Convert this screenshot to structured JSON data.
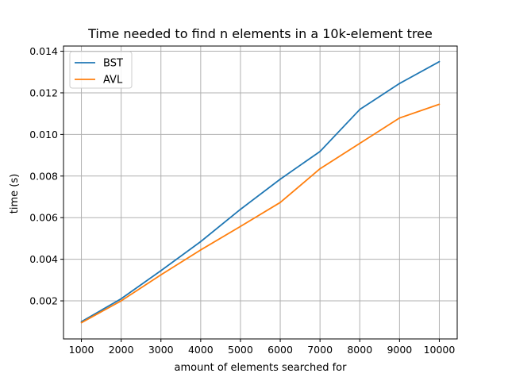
{
  "chart_data": {
    "type": "line",
    "title": "Time needed to find n elements in a 10k-element tree",
    "xlabel": "amount of elements searched for",
    "ylabel": "time (s)",
    "x": [
      1000,
      2000,
      3000,
      4000,
      5000,
      6000,
      7000,
      8000,
      9000,
      10000
    ],
    "xlim": [
      550,
      10450
    ],
    "ylim": [
      0.00017,
      0.01425
    ],
    "xticks": [
      1000,
      2000,
      3000,
      4000,
      5000,
      6000,
      7000,
      8000,
      9000,
      10000
    ],
    "yticks": [
      0.002,
      0.004,
      0.006,
      0.008,
      0.01,
      0.012,
      0.014
    ],
    "ytick_labels": [
      "0.002",
      "0.004",
      "0.006",
      "0.008",
      "0.010",
      "0.012",
      "0.014"
    ],
    "grid": true,
    "legend_position": "upper-left",
    "series": [
      {
        "name": "BST",
        "color": "#1f77b4",
        "values": [
          0.001,
          0.0021,
          0.00345,
          0.00485,
          0.0064,
          0.00785,
          0.00918,
          0.0112,
          0.01245,
          0.0135
        ]
      },
      {
        "name": "AVL",
        "color": "#ff7f0e",
        "values": [
          0.00095,
          0.002,
          0.00325,
          0.00445,
          0.00558,
          0.00673,
          0.00835,
          0.00957,
          0.01079,
          0.01145
        ]
      }
    ]
  }
}
